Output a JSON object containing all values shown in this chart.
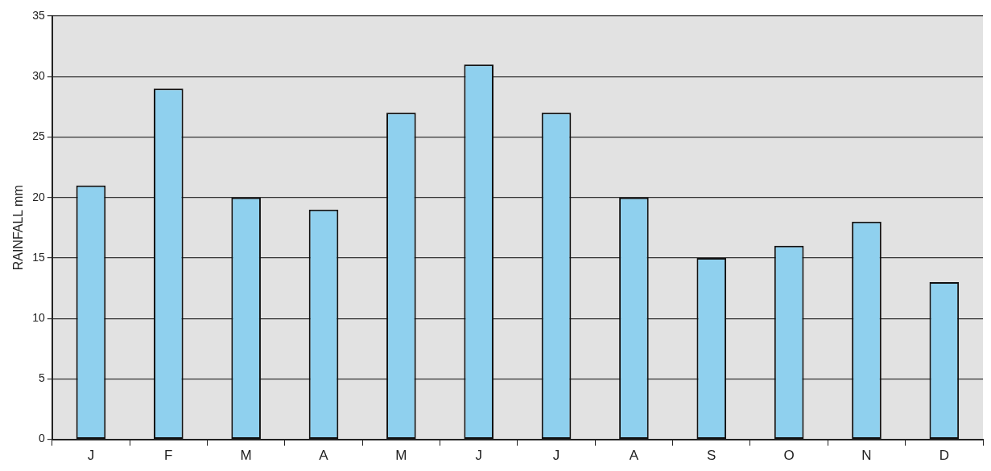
{
  "chart_data": {
    "type": "bar",
    "ylabel": "RAINFALL mm",
    "categories": [
      "J",
      "F",
      "M",
      "A",
      "M",
      "J",
      "J",
      "A",
      "S",
      "O",
      "N",
      "D"
    ],
    "values": [
      21,
      29,
      20,
      19,
      27,
      31,
      27,
      20,
      15,
      16,
      18,
      13
    ],
    "color": "#8fd0ee",
    "ylim": [
      0,
      35
    ],
    "yticks": [
      0,
      5,
      10,
      15,
      20,
      25,
      30,
      35
    ],
    "grid": "y",
    "legend": false
  }
}
